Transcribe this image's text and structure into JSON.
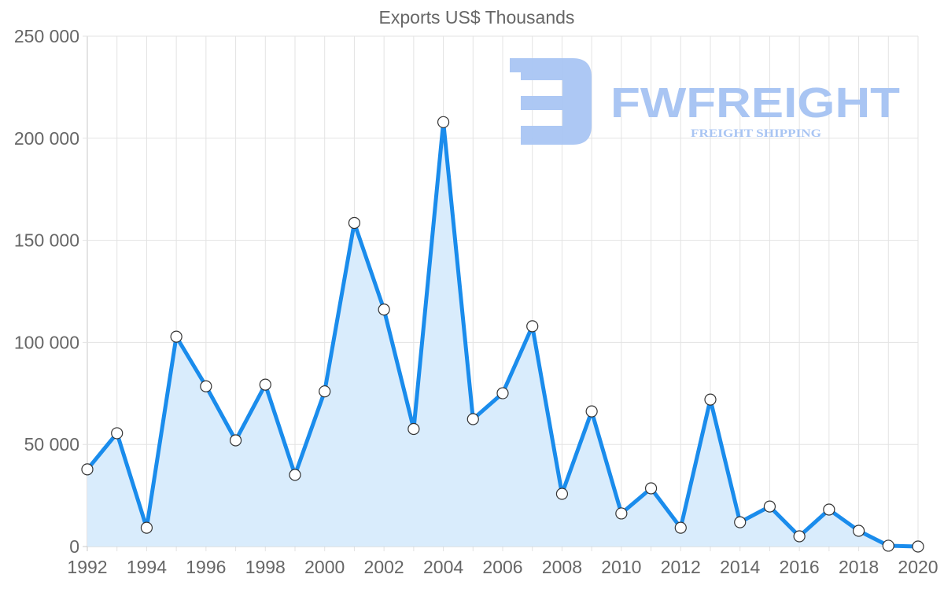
{
  "chart_data": {
    "type": "line",
    "title": "Exports US$ Thousands",
    "xlabel": "",
    "ylabel": "",
    "ylim": [
      0,
      250000
    ],
    "y_ticks": [
      0,
      50000,
      100000,
      150000,
      200000,
      250000
    ],
    "y_tick_labels": [
      "0",
      "50 000",
      "100 000",
      "150 000",
      "200 000",
      "250 000"
    ],
    "x_tick_labels": [
      "1992",
      "1994",
      "1996",
      "1998",
      "2000",
      "2002",
      "2004",
      "2006",
      "2008",
      "2010",
      "2012",
      "2014",
      "2016",
      "2018",
      "2020"
    ],
    "grid": true,
    "legend": null,
    "categories": [
      1992,
      1993,
      1994,
      1995,
      1996,
      1997,
      1998,
      1999,
      2000,
      2001,
      2002,
      2003,
      2004,
      2005,
      2006,
      2007,
      2008,
      2009,
      2010,
      2011,
      2012,
      2013,
      2014,
      2015,
      2016,
      2017,
      2018,
      2019,
      2020
    ],
    "series": [
      {
        "name": "Exports US$ Thousands",
        "values": [
          37800,
          55500,
          9200,
          102800,
          78500,
          52000,
          79300,
          35100,
          76000,
          158500,
          116100,
          57600,
          207900,
          62400,
          75100,
          107900,
          25800,
          66200,
          16200,
          28500,
          9200,
          72000,
          11900,
          19600,
          5000,
          18100,
          7700,
          400,
          0
        ],
        "line_color": "#1a8cec",
        "fill_color": "#d9ecfc",
        "point_fill": "#ffffff",
        "point_stroke": "#333333"
      }
    ]
  },
  "watermark": {
    "brand": "FWFREIGHT",
    "tagline": "FREIGHT SHIPPING",
    "color": "#a9c5f3"
  }
}
